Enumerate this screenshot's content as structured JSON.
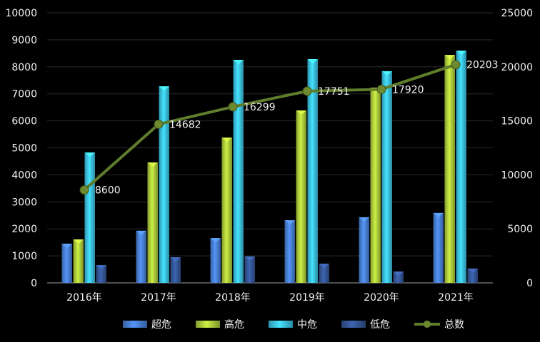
{
  "chart_data": {
    "type": "bar",
    "title": "",
    "categories": [
      "2016年",
      "2017年",
      "2018年",
      "2019年",
      "2020年",
      "2021年"
    ],
    "series": [
      {
        "name": "超危",
        "axis": "left",
        "color": "#4a82d8",
        "values": [
          1450,
          1930,
          1660,
          2320,
          2430,
          2590
        ]
      },
      {
        "name": "高危",
        "axis": "left",
        "color": "#b2d13c",
        "values": [
          1610,
          4460,
          5380,
          6385,
          7230,
          8440
        ]
      },
      {
        "name": "中危",
        "axis": "left",
        "color": "#3cc6ea",
        "values": [
          4830,
          7280,
          8260,
          8285,
          7840,
          8600
        ]
      },
      {
        "name": "低危",
        "axis": "left",
        "color": "#36589a",
        "values": [
          660,
          950,
          980,
          710,
          420,
          530
        ]
      },
      {
        "name": "总数",
        "axis": "right",
        "type": "line",
        "color": "#5f7d2c",
        "values": [
          8600,
          14682,
          16299,
          17751,
          17920,
          20203
        ],
        "labels": [
          "8600",
          "14682",
          "16299",
          "17751",
          "17920",
          "20203"
        ]
      }
    ],
    "y_left": {
      "range": [
        0,
        10000
      ],
      "ticks": [
        "0",
        "1000",
        "2000",
        "3000",
        "4000",
        "5000",
        "6000",
        "7000",
        "8000",
        "9000",
        "10000"
      ]
    },
    "y_right": {
      "range": [
        0,
        25000
      ],
      "ticks": [
        "0",
        "5000",
        "10000",
        "15000",
        "20000",
        "25000"
      ]
    },
    "grid": true,
    "legend": "bottom",
    "background": "#000000"
  }
}
